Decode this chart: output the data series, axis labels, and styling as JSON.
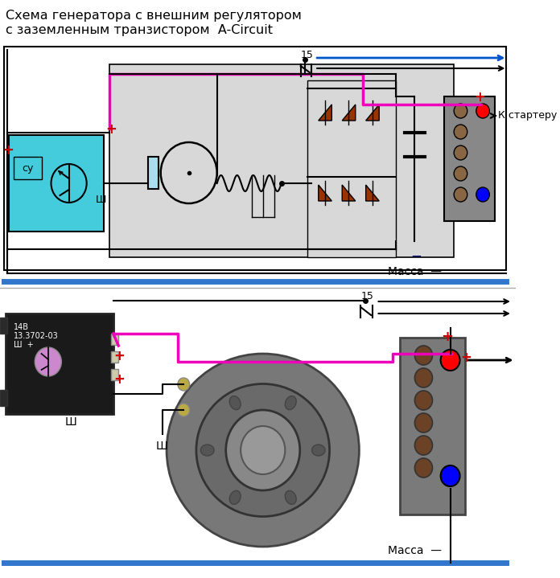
{
  "title_line1": "Схема генератора с внешним регулятором",
  "title_line2": "с заземленным транзистором  A-Circuit",
  "title_fontsize": 11.5,
  "bg_color": "#ffffff",
  "fig_width": 6.96,
  "fig_height": 7.19,
  "dpi": 100,
  "massa_text": "Масса",
  "k_starter_text": "К стартеру",
  "label_15": "15",
  "label_sh": "Ш",
  "label_su": "су",
  "plus_color": "#cc0000",
  "minus_color": "#000066",
  "pink_color": "#ee00bb",
  "blue_color": "#0000cc",
  "arrow_blue": "#0055cc",
  "cyan_color": "#44ccdd",
  "dark_red": "#993300",
  "gray_box": "#999999",
  "light_gray": "#d8d8d8",
  "divider_color": "#3377cc",
  "black": "#000000",
  "white": "#ffffff"
}
